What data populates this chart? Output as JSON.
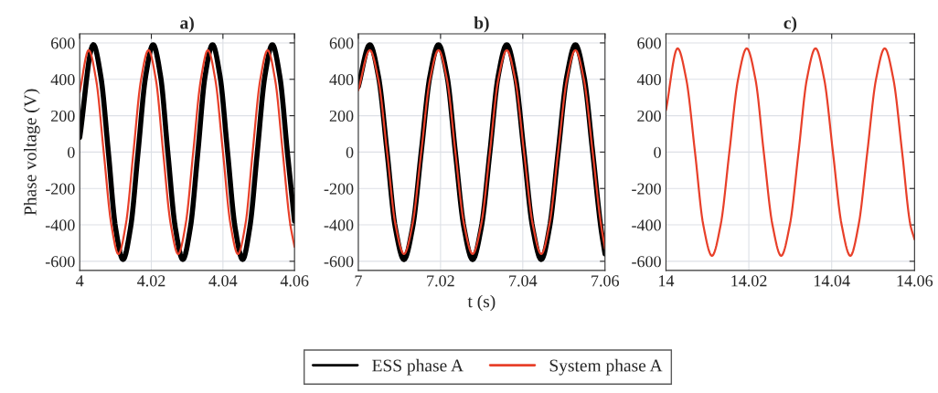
{
  "chart_data": [
    {
      "type": "line",
      "title": "a)",
      "ylabel": "Phase voltage (V)",
      "xlim": [
        4,
        4.06
      ],
      "xticks": [
        4,
        4.02,
        4.04,
        4.06
      ],
      "ylim": [
        -650,
        650
      ],
      "yticks": [
        -600,
        -400,
        -200,
        0,
        200,
        400,
        600
      ],
      "grid": true,
      "legend": "bottom",
      "series": [
        {
          "name": "ESS phase A",
          "color": "#000000",
          "x": [
            4.0,
            4.0038,
            4.0059,
            4.008,
            4.01,
            4.0121,
            4.0142,
            4.0163,
            4.0184,
            4.0205,
            4.0226,
            4.0246,
            4.0267,
            4.0288,
            4.0309,
            4.033,
            4.035,
            4.0371,
            4.0392,
            4.0413,
            4.0434,
            4.0455,
            4.0475,
            4.0496,
            4.0517,
            4.0538,
            4.0559,
            4.058,
            4.06
          ],
          "values": [
            80,
            590,
            415,
            0,
            -415,
            -590,
            -415,
            0,
            415,
            590,
            415,
            0,
            -415,
            -590,
            -415,
            0,
            415,
            590,
            415,
            0,
            -415,
            -590,
            -415,
            0,
            415,
            590,
            415,
            0,
            -380
          ]
        },
        {
          "name": "System phase A",
          "color": "#e8402a",
          "x": [
            4.0,
            4.0025,
            4.0046,
            4.0067,
            4.0088,
            4.0108,
            4.0129,
            4.015,
            4.0171,
            4.0192,
            4.0213,
            4.0233,
            4.0254,
            4.0275,
            4.0296,
            4.0317,
            4.0338,
            4.0358,
            4.0379,
            4.04,
            4.0421,
            4.0442,
            4.0463,
            4.0483,
            4.0504,
            4.0525,
            4.0546,
            4.0567,
            4.0588,
            4.06
          ],
          "values": [
            330,
            560,
            395,
            0,
            -395,
            -560,
            -395,
            0,
            395,
            560,
            395,
            0,
            -395,
            -560,
            -395,
            0,
            395,
            560,
            395,
            0,
            -395,
            -560,
            -395,
            0,
            395,
            560,
            395,
            0,
            -395,
            -520
          ]
        }
      ]
    },
    {
      "type": "line",
      "title": "b)",
      "xlabel": "t (s)",
      "xlim": [
        7,
        7.06
      ],
      "xticks": [
        7,
        7.02,
        7.04,
        7.06
      ],
      "ylim": [
        -650,
        650
      ],
      "yticks": [
        -600,
        -400,
        -200,
        0,
        200,
        400,
        600
      ],
      "grid": true,
      "legend": "bottom",
      "series": [
        {
          "name": "ESS phase A",
          "color": "#000000",
          "x": [
            7.0,
            7.0028,
            7.0049,
            7.007,
            7.009,
            7.0111,
            7.0132,
            7.0153,
            7.0174,
            7.0195,
            7.0216,
            7.0236,
            7.0257,
            7.0278,
            7.0299,
            7.032,
            7.034,
            7.0361,
            7.0382,
            7.0403,
            7.0424,
            7.0445,
            7.0465,
            7.0486,
            7.0507,
            7.0528,
            7.0549,
            7.057,
            7.059,
            7.06
          ],
          "values": [
            360,
            590,
            415,
            0,
            -415,
            -590,
            -415,
            0,
            415,
            590,
            415,
            0,
            -415,
            -590,
            -415,
            0,
            415,
            590,
            415,
            0,
            -415,
            -590,
            -415,
            0,
            415,
            590,
            415,
            0,
            -415,
            -560
          ]
        },
        {
          "name": "System phase A",
          "color": "#e8402a",
          "x": [
            7.0,
            7.0028,
            7.0049,
            7.007,
            7.009,
            7.0111,
            7.0132,
            7.0153,
            7.0174,
            7.0195,
            7.0216,
            7.0236,
            7.0257,
            7.0278,
            7.0299,
            7.032,
            7.034,
            7.0361,
            7.0382,
            7.0403,
            7.0424,
            7.0445,
            7.0465,
            7.0486,
            7.0507,
            7.0528,
            7.0549,
            7.057,
            7.059,
            7.06
          ],
          "values": [
            340,
            560,
            395,
            0,
            -395,
            -560,
            -395,
            0,
            395,
            560,
            395,
            0,
            -395,
            -560,
            -395,
            0,
            395,
            560,
            395,
            0,
            -395,
            -560,
            -395,
            0,
            395,
            560,
            395,
            0,
            -395,
            -530
          ]
        }
      ]
    },
    {
      "type": "line",
      "title": "c)",
      "xlim": [
        14,
        14.06
      ],
      "xticks": [
        14,
        14.02,
        14.04,
        14.06
      ],
      "ylim": [
        -650,
        650
      ],
      "yticks": [
        -600,
        -400,
        -200,
        0,
        200,
        400,
        600
      ],
      "grid": true,
      "legend": "bottom",
      "series": [
        {
          "name": "System phase A",
          "color": "#e8402a",
          "x": [
            14.0,
            14.0028,
            14.0049,
            14.007,
            14.009,
            14.0111,
            14.0132,
            14.0153,
            14.0174,
            14.0195,
            14.0216,
            14.0236,
            14.0257,
            14.0278,
            14.0299,
            14.032,
            14.034,
            14.0361,
            14.0382,
            14.0403,
            14.0424,
            14.0445,
            14.0465,
            14.0486,
            14.0507,
            14.0528,
            14.0549,
            14.057,
            14.059,
            14.06
          ],
          "values": [
            230,
            570,
            400,
            0,
            -400,
            -570,
            -400,
            0,
            400,
            570,
            400,
            0,
            -400,
            -570,
            -400,
            0,
            400,
            570,
            400,
            0,
            -400,
            -570,
            -400,
            0,
            400,
            570,
            400,
            0,
            -400,
            -480
          ]
        }
      ]
    }
  ]
}
